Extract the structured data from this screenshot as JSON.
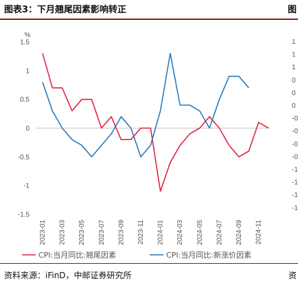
{
  "header": {
    "title": "图表3：下月翘尾因素影响转正",
    "title_right_fragment": "图"
  },
  "footer": {
    "source": "资料来源：iFinD，中邮证券研究所",
    "source_right_fragment": "资"
  },
  "chart_data": {
    "type": "line",
    "ylabel": "%",
    "ylim": [
      -1.5,
      1.5
    ],
    "yticks": [
      "1.5",
      "1",
      "0.5",
      "0",
      "-0.5",
      "-1",
      "-1.5"
    ],
    "ytick_values": [
      1.5,
      1,
      0.5,
      0,
      -0.5,
      -1,
      -1.5
    ],
    "categories": [
      "2023-01",
      "2023-02",
      "2023-03",
      "2023-04",
      "2023-05",
      "2023-06",
      "2023-07",
      "2023-08",
      "2023-09",
      "2023-10",
      "2023-11",
      "2023-12",
      "2024-01",
      "2024-02",
      "2024-03",
      "2024-04",
      "2024-05",
      "2024-06",
      "2024-07",
      "2024-08",
      "2024-09",
      "2024-10",
      "2024-11",
      "2024-12"
    ],
    "xtick_labels": [
      "2023-01",
      "2023-03",
      "2023-05",
      "2023-07",
      "2023-09",
      "2023-11",
      "2024-01",
      "2024-03",
      "2024-05",
      "2024-07",
      "2024-09",
      "2024-11"
    ],
    "series": [
      {
        "name": "CPI:当月同比:翘尾因素",
        "color": "#e0233d",
        "values": [
          1.3,
          0.7,
          0.7,
          0.3,
          0.5,
          0.5,
          0.0,
          0.2,
          -0.2,
          -0.2,
          0.0,
          0.0,
          -1.1,
          -0.6,
          -0.3,
          -0.1,
          0.0,
          0.2,
          0.0,
          -0.3,
          -0.5,
          -0.4,
          0.1,
          0.0
        ]
      },
      {
        "name": "CPI:当月同比:新涨价因素",
        "color": "#2a7ab9",
        "values": [
          0.8,
          0.3,
          0.0,
          -0.2,
          -0.3,
          -0.5,
          -0.3,
          -0.1,
          0.2,
          0.0,
          -0.5,
          -0.3,
          0.3,
          1.3,
          0.4,
          0.4,
          0.3,
          0.0,
          0.5,
          0.9,
          0.9,
          0.7,
          null,
          null
        ]
      }
    ],
    "legend_position": "bottom",
    "grid": false,
    "right_axis_fragment_ticks": [
      "1",
      "1",
      "1",
      "0",
      "0",
      "0",
      "-0",
      "-0",
      "-0",
      "-0",
      "-1",
      "-1",
      "-1",
      "-1"
    ]
  }
}
